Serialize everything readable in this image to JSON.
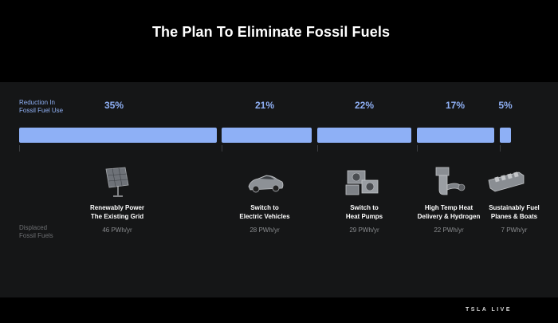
{
  "title": "The Plan To Eliminate Fossil Fuels",
  "reduction_label_line1": "Reduction In",
  "reduction_label_line2": "Fossil Fuel Use",
  "displaced_label_line1": "Displaced",
  "displaced_label_line2": "Fossil Fuels",
  "brand": "TSLA LIVE",
  "bar_color": "#8eb0f6",
  "steps": [
    {
      "percent": "35%",
      "share": 35,
      "icon": "solar-panel-icon",
      "label_line1": "Renewably Power",
      "label_line2": "The Existing Grid",
      "amount": "46 PWh/yr"
    },
    {
      "percent": "21%",
      "share": 21,
      "icon": "electric-car-icon",
      "label_line1": "Switch to",
      "label_line2": "Electric Vehicles",
      "amount": "28 PWh/yr"
    },
    {
      "percent": "22%",
      "share": 22,
      "icon": "heat-pump-icon",
      "label_line1": "Switch to",
      "label_line2": "Heat Pumps",
      "amount": "29 PWh/yr"
    },
    {
      "percent": "17%",
      "share": 17,
      "icon": "industrial-heat-icon",
      "label_line1": "High Temp Heat",
      "label_line2": "Delivery & Hydrogen",
      "amount": "22 PWh/yr"
    },
    {
      "percent": "5%",
      "share": 5,
      "icon": "ship-icon",
      "label_line1": "Sustainably Fuel",
      "label_line2": "Planes & Boats",
      "amount": "7 PWh/yr"
    }
  ]
}
